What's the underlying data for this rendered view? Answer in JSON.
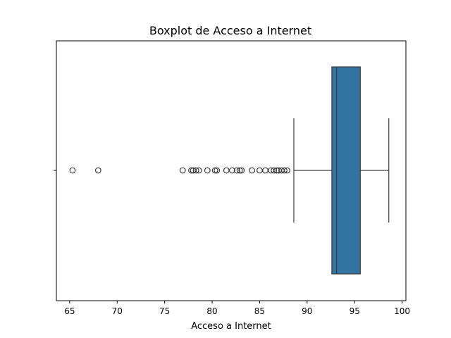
{
  "chart_data": {
    "type": "boxplot",
    "title": "Boxplot de Acceso a Internet",
    "xlabel": "Acceso a Internet",
    "ylabel": "",
    "xlim": [
      63.6,
      100.4
    ],
    "xticks": [
      65,
      70,
      75,
      80,
      85,
      90,
      95,
      100
    ],
    "box": {
      "whisker_low": 88.6,
      "q1": 92.6,
      "median": 93.1,
      "q3": 95.6,
      "whisker_high": 98.6
    },
    "outliers": [
      65.3,
      68.0,
      76.9,
      77.8,
      78.0,
      78.3,
      78.6,
      79.5,
      80.3,
      80.5,
      81.5,
      82.1,
      82.6,
      82.9,
      83.1,
      84.2,
      85.0,
      85.6,
      86.2,
      86.5,
      86.8,
      87.0,
      87.3,
      87.6,
      87.9
    ],
    "box_color": "#3274a1",
    "grid": false
  }
}
